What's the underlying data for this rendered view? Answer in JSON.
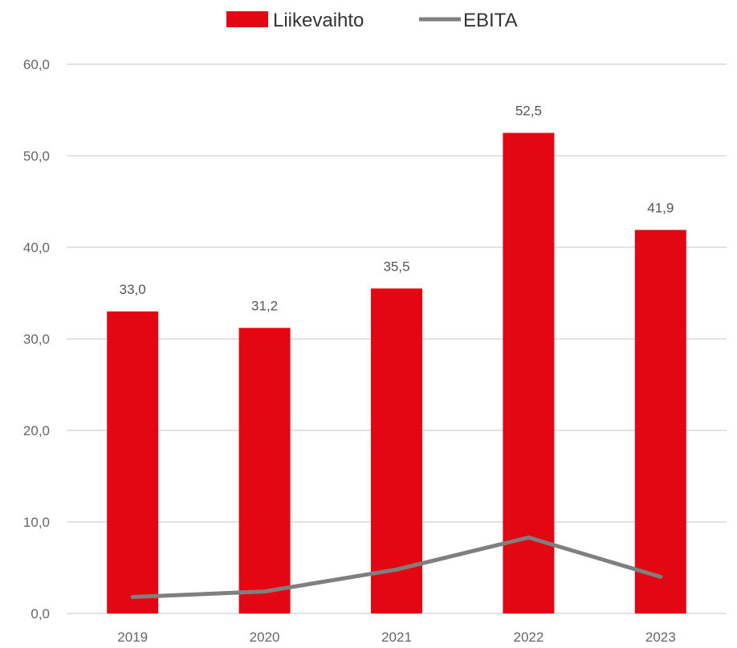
{
  "chart_data": {
    "type": "bar",
    "categories": [
      "2019",
      "2020",
      "2021",
      "2022",
      "2023"
    ],
    "series": [
      {
        "name": "Liikevaihto",
        "type": "bar",
        "color": "#e30613",
        "values": [
          33.0,
          31.2,
          35.5,
          52.5,
          41.9
        ],
        "value_labels": [
          "33,0",
          "31,2",
          "35,5",
          "52,5",
          "41,9"
        ]
      },
      {
        "name": "EBITA",
        "type": "line",
        "color": "#7f7f7f",
        "values": [
          1.8,
          2.4,
          4.8,
          8.3,
          4.0
        ]
      }
    ],
    "y_ticks": [
      0,
      10,
      20,
      30,
      40,
      50,
      60
    ],
    "y_tick_labels": [
      "0,0",
      "10,0",
      "20,0",
      "30,0",
      "40,0",
      "50,0",
      "60,0"
    ],
    "ylim": [
      0,
      60
    ],
    "grid": true,
    "legend_position": "top-center",
    "title": "",
    "xlabel": "",
    "ylabel": ""
  }
}
